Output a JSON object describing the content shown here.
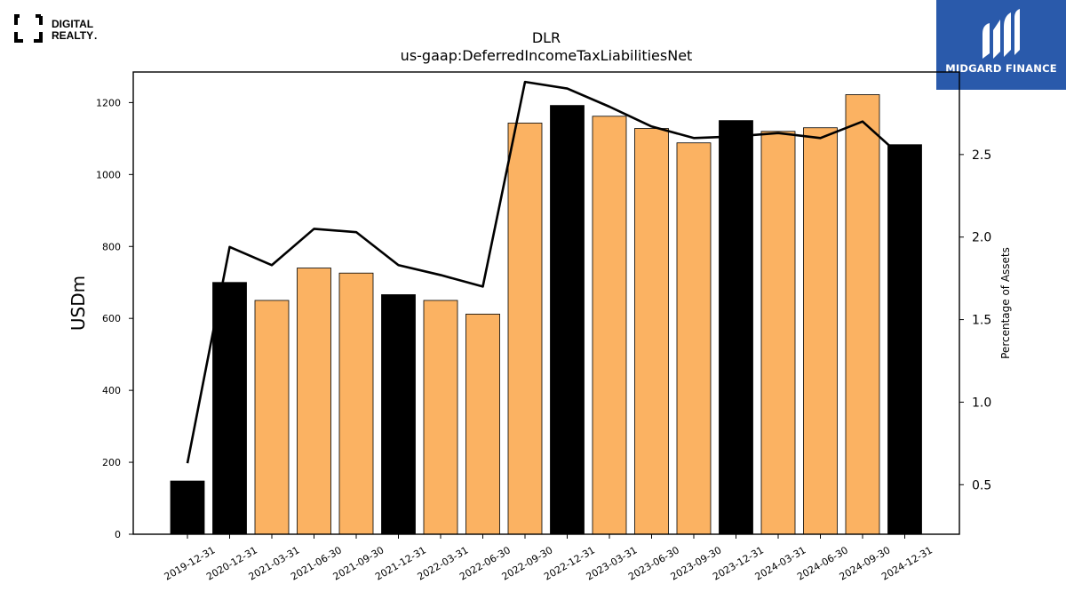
{
  "branding": {
    "left_logo_line1": "DIGITAL",
    "left_logo_line2": "REALTY",
    "left_logo_mark": ".",
    "right_logo_text": "MIDGARD FINANCE",
    "right_logo_bg": "#2a5aab"
  },
  "chart_data": {
    "type": "bar",
    "title": "DLR",
    "subtitle": "us-gaap:DeferredIncomeTaxLiabilitiesNet",
    "ylabel": "USDm",
    "y2label": "Percentage of Assets",
    "ylim": [
      0,
      1285
    ],
    "y2lim": [
      0.2,
      3.0
    ],
    "yticks": [
      0,
      200,
      400,
      600,
      800,
      1000,
      1200
    ],
    "y2ticks": [
      0.5,
      1.0,
      1.5,
      2.0,
      2.5
    ],
    "y2ticklabels": [
      "0.5",
      "1.0",
      "1.5",
      "2.0",
      "2.5"
    ],
    "grid": false,
    "categories": [
      "2019-12-31",
      "2020-12-31",
      "2021-03-31",
      "2021-06-30",
      "2021-09-30",
      "2021-12-31",
      "2022-03-31",
      "2022-06-30",
      "2022-09-30",
      "2022-12-31",
      "2023-03-31",
      "2023-06-30",
      "2023-09-30",
      "2023-12-31",
      "2024-03-31",
      "2024-06-30",
      "2024-09-30",
      "2024-12-31"
    ],
    "series": [
      {
        "type": "bar",
        "axis": "left",
        "values": [
          148,
          700,
          650,
          740,
          726,
          666,
          650,
          612,
          1143,
          1192,
          1162,
          1128,
          1088,
          1150,
          1120,
          1130,
          1222,
          1083
        ],
        "colors": [
          "#000000",
          "#000000",
          "#fbb262",
          "#fbb262",
          "#fbb262",
          "#000000",
          "#fbb262",
          "#fbb262",
          "#fbb262",
          "#000000",
          "#fbb262",
          "#fbb262",
          "#fbb262",
          "#000000",
          "#fbb262",
          "#fbb262",
          "#fbb262",
          "#000000"
        ]
      },
      {
        "type": "line",
        "axis": "right",
        "color": "#000000",
        "values": [
          0.63,
          1.94,
          1.83,
          2.05,
          2.03,
          1.83,
          1.77,
          1.7,
          2.94,
          2.9,
          2.79,
          2.67,
          2.6,
          2.61,
          2.63,
          2.6,
          2.7,
          2.47
        ]
      }
    ]
  }
}
